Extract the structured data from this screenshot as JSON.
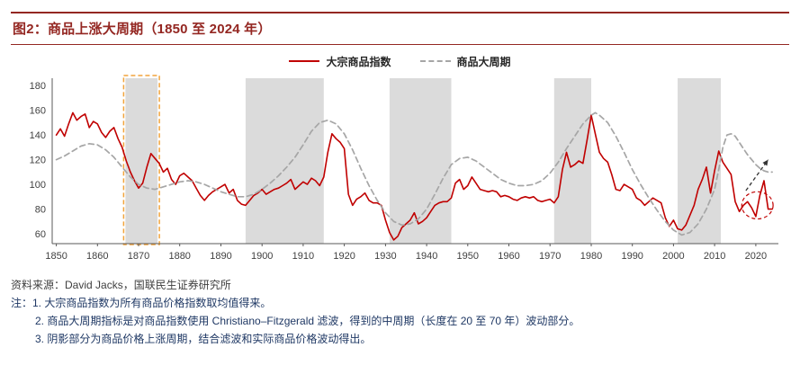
{
  "header": {
    "title": "图2：商品上涨大周期（1850 至 2024 年）"
  },
  "footer": {
    "source": "资料来源：David Jacks，国联民生证券研究所",
    "notes": [
      "注：1. 大宗商品指数为所有商品价格指数取均值得来。",
      "2. 商品大周期指标是对商品指数使用 Christiano–Fitzgerald 滤波，得到的中周期（长度在 20 至 70 年）波动部分。",
      "3. 阴影部分为商品价格上涨周期，结合滤波和实际商品价格波动得出。"
    ]
  },
  "colors": {
    "accent_maroon": "#942722",
    "index_red": "#C00000",
    "cycle_gray": "#A6A6A6",
    "band_gray": "#DBDBDB",
    "highlight_orange": "#F2A43C",
    "axis_text": "#404040",
    "note_blue": "#1F3864"
  },
  "chart_data": {
    "type": "line",
    "title": "",
    "xlabel": "",
    "ylabel": "",
    "x_range": [
      1849,
      2025.5
    ],
    "y_range": [
      52,
      186
    ],
    "x_ticks": [
      1850,
      1860,
      1870,
      1880,
      1890,
      1900,
      1910,
      1920,
      1930,
      1940,
      1950,
      1960,
      1970,
      1980,
      1990,
      2000,
      2010,
      2020
    ],
    "y_ticks": [
      60,
      80,
      100,
      120,
      140,
      160,
      180
    ],
    "grid": false,
    "legend_position": "top-center",
    "band_color": "#DBDBDB",
    "highlight_color": "#F2A43C",
    "legend": [
      {
        "name": "大宗商品指数",
        "color": "#C00000",
        "style": "solid"
      },
      {
        "name": "商品大周期",
        "color": "#A6A6A6",
        "style": "dashed"
      }
    ],
    "bands": [
      {
        "from": 1866.8,
        "to": 1874.6,
        "highlight": true
      },
      {
        "from": 1896,
        "to": 1915
      },
      {
        "from": 1931,
        "to": 1946
      },
      {
        "from": 1971,
        "to": 1980
      },
      {
        "from": 2001,
        "to": 2011.5
      }
    ],
    "series": [
      {
        "name": "大宗商品指数",
        "color": "#C00000",
        "dash": null,
        "width": 1.6,
        "points": [
          [
            1850,
            140
          ],
          [
            1851,
            145
          ],
          [
            1852,
            139
          ],
          [
            1853,
            149
          ],
          [
            1854,
            158
          ],
          [
            1855,
            152
          ],
          [
            1856,
            155
          ],
          [
            1857,
            157
          ],
          [
            1858,
            146
          ],
          [
            1859,
            151
          ],
          [
            1860,
            149
          ],
          [
            1861,
            142
          ],
          [
            1862,
            138
          ],
          [
            1863,
            143
          ],
          [
            1864,
            146
          ],
          [
            1865,
            137
          ],
          [
            1866,
            130
          ],
          [
            1867,
            119
          ],
          [
            1868,
            110
          ],
          [
            1869,
            103
          ],
          [
            1870,
            97
          ],
          [
            1871,
            101
          ],
          [
            1872,
            114
          ],
          [
            1873,
            125
          ],
          [
            1874,
            121
          ],
          [
            1875,
            117
          ],
          [
            1876,
            110
          ],
          [
            1877,
            113
          ],
          [
            1878,
            104
          ],
          [
            1879,
            100
          ],
          [
            1880,
            107
          ],
          [
            1881,
            109
          ],
          [
            1882,
            106
          ],
          [
            1883,
            103
          ],
          [
            1884,
            97
          ],
          [
            1885,
            91
          ],
          [
            1886,
            87
          ],
          [
            1887,
            91
          ],
          [
            1888,
            94
          ],
          [
            1889,
            96
          ],
          [
            1890,
            98
          ],
          [
            1891,
            100
          ],
          [
            1892,
            93
          ],
          [
            1893,
            96
          ],
          [
            1894,
            87
          ],
          [
            1895,
            84
          ],
          [
            1896,
            83
          ],
          [
            1897,
            87
          ],
          [
            1898,
            91
          ],
          [
            1899,
            93
          ],
          [
            1900,
            96
          ],
          [
            1901,
            92
          ],
          [
            1902,
            94
          ],
          [
            1903,
            96
          ],
          [
            1904,
            97
          ],
          [
            1905,
            99
          ],
          [
            1906,
            101
          ],
          [
            1907,
            104
          ],
          [
            1908,
            96
          ],
          [
            1909,
            99
          ],
          [
            1910,
            102
          ],
          [
            1911,
            100
          ],
          [
            1912,
            105
          ],
          [
            1913,
            103
          ],
          [
            1914,
            99
          ],
          [
            1915,
            106
          ],
          [
            1916,
            126
          ],
          [
            1917,
            141
          ],
          [
            1918,
            137
          ],
          [
            1919,
            134
          ],
          [
            1920,
            129
          ],
          [
            1921,
            92
          ],
          [
            1922,
            83
          ],
          [
            1923,
            88
          ],
          [
            1924,
            90
          ],
          [
            1925,
            93
          ],
          [
            1926,
            87
          ],
          [
            1927,
            85
          ],
          [
            1928,
            85
          ],
          [
            1929,
            83
          ],
          [
            1930,
            71
          ],
          [
            1931,
            61
          ],
          [
            1932,
            55
          ],
          [
            1933,
            58
          ],
          [
            1934,
            65
          ],
          [
            1935,
            68
          ],
          [
            1936,
            71
          ],
          [
            1937,
            77
          ],
          [
            1938,
            68
          ],
          [
            1939,
            70
          ],
          [
            1940,
            73
          ],
          [
            1941,
            78
          ],
          [
            1942,
            83
          ],
          [
            1943,
            85
          ],
          [
            1944,
            86
          ],
          [
            1945,
            86
          ],
          [
            1946,
            89
          ],
          [
            1947,
            101
          ],
          [
            1948,
            104
          ],
          [
            1949,
            96
          ],
          [
            1950,
            99
          ],
          [
            1951,
            106
          ],
          [
            1952,
            101
          ],
          [
            1953,
            96
          ],
          [
            1954,
            95
          ],
          [
            1955,
            94
          ],
          [
            1956,
            95
          ],
          [
            1957,
            94
          ],
          [
            1958,
            90
          ],
          [
            1959,
            91
          ],
          [
            1960,
            90
          ],
          [
            1961,
            88
          ],
          [
            1962,
            87
          ],
          [
            1963,
            89
          ],
          [
            1964,
            90
          ],
          [
            1965,
            89
          ],
          [
            1966,
            90
          ],
          [
            1967,
            87
          ],
          [
            1968,
            86
          ],
          [
            1969,
            87
          ],
          [
            1970,
            88
          ],
          [
            1971,
            85
          ],
          [
            1972,
            90
          ],
          [
            1973,
            112
          ],
          [
            1974,
            126
          ],
          [
            1975,
            114
          ],
          [
            1976,
            116
          ],
          [
            1977,
            119
          ],
          [
            1978,
            117
          ],
          [
            1979,
            136
          ],
          [
            1980,
            156
          ],
          [
            1981,
            141
          ],
          [
            1982,
            126
          ],
          [
            1983,
            121
          ],
          [
            1984,
            118
          ],
          [
            1985,
            108
          ],
          [
            1986,
            96
          ],
          [
            1987,
            95
          ],
          [
            1988,
            100
          ],
          [
            1989,
            98
          ],
          [
            1990,
            96
          ],
          [
            1991,
            89
          ],
          [
            1992,
            87
          ],
          [
            1993,
            83
          ],
          [
            1994,
            86
          ],
          [
            1995,
            89
          ],
          [
            1996,
            87
          ],
          [
            1997,
            85
          ],
          [
            1998,
            73
          ],
          [
            1999,
            66
          ],
          [
            2000,
            71
          ],
          [
            2001,
            64
          ],
          [
            2002,
            63
          ],
          [
            2003,
            67
          ],
          [
            2004,
            75
          ],
          [
            2005,
            83
          ],
          [
            2006,
            96
          ],
          [
            2007,
            104
          ],
          [
            2008,
            114
          ],
          [
            2009,
            93
          ],
          [
            2010,
            111
          ],
          [
            2011,
            127
          ],
          [
            2012,
            118
          ],
          [
            2013,
            113
          ],
          [
            2014,
            108
          ],
          [
            2015,
            86
          ],
          [
            2016,
            78
          ],
          [
            2017,
            83
          ],
          [
            2018,
            86
          ],
          [
            2019,
            81
          ],
          [
            2020,
            74
          ],
          [
            2021,
            91
          ],
          [
            2022,
            103
          ],
          [
            2023,
            80
          ],
          [
            2024,
            80
          ]
        ]
      },
      {
        "name": "商品大周期",
        "color": "#A6A6A6",
        "dash": "6,4",
        "width": 1.7,
        "points": [
          [
            1850,
            120
          ],
          [
            1852,
            123
          ],
          [
            1854,
            127
          ],
          [
            1856,
            131
          ],
          [
            1858,
            133
          ],
          [
            1860,
            132
          ],
          [
            1862,
            128
          ],
          [
            1864,
            122
          ],
          [
            1866,
            114
          ],
          [
            1868,
            106
          ],
          [
            1870,
            100
          ],
          [
            1872,
            97
          ],
          [
            1874,
            96
          ],
          [
            1876,
            98
          ],
          [
            1878,
            100
          ],
          [
            1880,
            102
          ],
          [
            1882,
            103
          ],
          [
            1884,
            102
          ],
          [
            1886,
            100
          ],
          [
            1888,
            97
          ],
          [
            1890,
            94
          ],
          [
            1892,
            92
          ],
          [
            1894,
            90
          ],
          [
            1896,
            90
          ],
          [
            1898,
            92
          ],
          [
            1900,
            96
          ],
          [
            1902,
            101
          ],
          [
            1904,
            107
          ],
          [
            1906,
            114
          ],
          [
            1908,
            122
          ],
          [
            1910,
            132
          ],
          [
            1912,
            143
          ],
          [
            1914,
            150
          ],
          [
            1916,
            152
          ],
          [
            1918,
            149
          ],
          [
            1920,
            141
          ],
          [
            1922,
            128
          ],
          [
            1924,
            113
          ],
          [
            1926,
            99
          ],
          [
            1928,
            87
          ],
          [
            1930,
            77
          ],
          [
            1932,
            70
          ],
          [
            1934,
            67
          ],
          [
            1936,
            68
          ],
          [
            1938,
            72
          ],
          [
            1940,
            80
          ],
          [
            1942,
            92
          ],
          [
            1944,
            105
          ],
          [
            1946,
            116
          ],
          [
            1948,
            121
          ],
          [
            1950,
            122
          ],
          [
            1952,
            119
          ],
          [
            1954,
            114
          ],
          [
            1956,
            109
          ],
          [
            1958,
            104
          ],
          [
            1960,
            101
          ],
          [
            1962,
            99
          ],
          [
            1964,
            99
          ],
          [
            1966,
            100
          ],
          [
            1968,
            103
          ],
          [
            1970,
            109
          ],
          [
            1972,
            118
          ],
          [
            1974,
            129
          ],
          [
            1976,
            139
          ],
          [
            1978,
            149
          ],
          [
            1980,
            156
          ],
          [
            1981,
            158
          ],
          [
            1982,
            156
          ],
          [
            1984,
            150
          ],
          [
            1986,
            139
          ],
          [
            1988,
            126
          ],
          [
            1990,
            112
          ],
          [
            1992,
            100
          ],
          [
            1994,
            89
          ],
          [
            1996,
            79
          ],
          [
            1998,
            70
          ],
          [
            2000,
            63
          ],
          [
            2002,
            59
          ],
          [
            2004,
            61
          ],
          [
            2006,
            68
          ],
          [
            2008,
            80
          ],
          [
            2010,
            96
          ],
          [
            2011,
            112
          ],
          [
            2012,
            130
          ],
          [
            2013,
            140
          ],
          [
            2014,
            141
          ],
          [
            2015,
            139
          ],
          [
            2016,
            134
          ],
          [
            2017,
            129
          ],
          [
            2018,
            124
          ],
          [
            2019,
            120
          ],
          [
            2020,
            116
          ],
          [
            2021,
            113
          ],
          [
            2022,
            111
          ],
          [
            2023,
            110
          ],
          [
            2024,
            110
          ]
        ]
      }
    ],
    "annotations": {
      "ellipse": {
        "cx": 2020.4,
        "cy": 83,
        "rx_years": 3.8,
        "ry_units": 11,
        "color": "#C00000"
      },
      "arrow": {
        "from": [
          2017.6,
          95
        ],
        "to": [
          2023.0,
          120
        ],
        "color": "#333333"
      }
    }
  }
}
